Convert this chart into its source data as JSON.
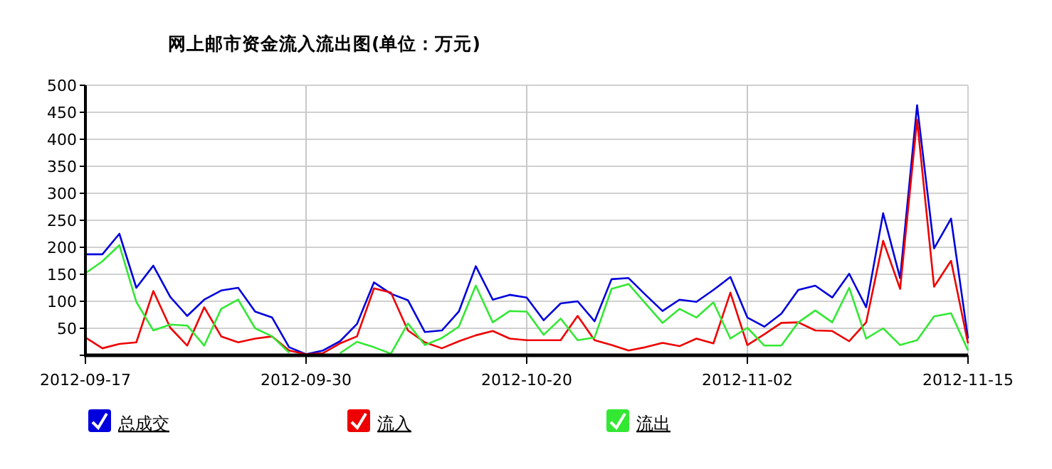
{
  "chart_data": {
    "type": "line",
    "title": "网上邮市资金流入流出图(单位：万元)",
    "categories": [
      "2012-09-17",
      null,
      null,
      null,
      null,
      null,
      null,
      null,
      null,
      null,
      null,
      null,
      null,
      "2012-09-30",
      null,
      null,
      null,
      null,
      null,
      null,
      null,
      null,
      null,
      null,
      null,
      null,
      "2012-10-20",
      null,
      null,
      null,
      null,
      null,
      null,
      null,
      null,
      null,
      null,
      null,
      null,
      "2012-11-02",
      null,
      null,
      null,
      null,
      null,
      null,
      null,
      null,
      null,
      null,
      null,
      null,
      "2012-11-15"
    ],
    "series": [
      {
        "name": "总成交",
        "color": "#0000dd",
        "values": [
          187,
          187,
          225,
          125,
          166,
          108,
          73,
          103,
          120,
          125,
          81,
          70,
          15,
          2,
          9,
          26,
          58,
          135,
          114,
          102,
          43,
          46,
          81,
          165,
          103,
          112,
          107,
          65,
          96,
          100,
          63,
          141,
          143,
          112,
          82,
          103,
          99,
          121,
          145,
          70,
          53,
          77,
          121,
          129,
          107,
          151,
          89,
          263,
          143,
          463,
          198,
          253,
          31
        ]
      },
      {
        "name": "流入",
        "color": "#ee0000",
        "values": [
          33,
          13,
          21,
          24,
          119,
          51,
          18,
          89,
          35,
          24,
          31,
          35,
          9,
          2,
          4,
          22,
          35,
          124,
          116,
          46,
          24,
          13,
          26,
          37,
          45,
          31,
          28,
          28,
          28,
          73,
          28,
          19,
          9,
          15,
          23,
          17,
          31,
          22,
          116,
          19,
          39,
          60,
          61,
          46,
          45,
          26,
          61,
          212,
          123,
          436,
          127,
          175,
          22
        ]
      },
      {
        "name": "流出",
        "color": "#33e833",
        "values": [
          152,
          174,
          204,
          99,
          46,
          57,
          55,
          18,
          86,
          103,
          50,
          35,
          5,
          null,
          null,
          4,
          25,
          15,
          3,
          59,
          19,
          32,
          53,
          129,
          61,
          82,
          81,
          38,
          68,
          28,
          33,
          123,
          132,
          96,
          60,
          86,
          70,
          98,
          31,
          51,
          18,
          18,
          61,
          83,
          61,
          125,
          31,
          50,
          19,
          28,
          72,
          78,
          9
        ]
      }
    ],
    "ylim": [
      0,
      500
    ],
    "yticks": [
      {
        "value": 0,
        "label": null
      },
      50,
      100,
      150,
      200,
      250,
      300,
      350,
      400,
      450,
      500
    ],
    "grid": true,
    "legend": "bottom",
    "marker": "none",
    "line_style": "solid"
  }
}
